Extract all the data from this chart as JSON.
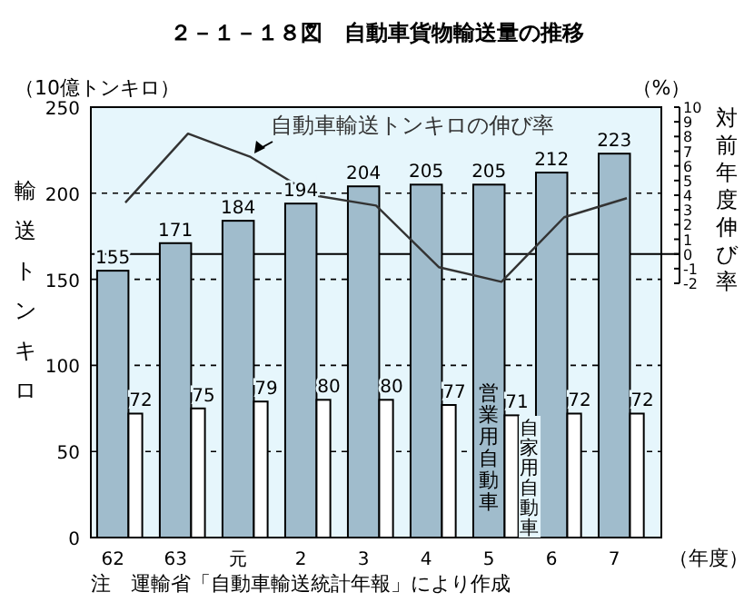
{
  "chart_data": {
    "type": "bar",
    "title": "２－１－１８図　自動車貨物輸送量の推移",
    "ylabel": "輸送トンキロ",
    "y2label": "対前年度伸び率",
    "xlabel": "（年度）",
    "annotations": [
      "（10億トンキロ）",
      "（%）",
      "注　運輸省「自動車輸送統計年報」により作成"
    ],
    "categories": [
      "62",
      "63",
      "元",
      "2",
      "3",
      "4",
      "5",
      "6",
      "7"
    ],
    "series": [
      {
        "name": "営業用自動車",
        "color": "#a0bccc",
        "values": [
          155,
          171,
          184,
          194,
          204,
          205,
          205,
          212,
          223
        ],
        "value_labels": [
          "155",
          "171",
          "184",
          "194",
          "204",
          "205",
          "205",
          "212",
          "223"
        ]
      },
      {
        "name": "自家用自動車",
        "color": "#ffffff",
        "values": [
          72,
          75,
          79,
          80,
          80,
          77,
          71,
          72,
          72
        ],
        "value_labels": [
          "72",
          "75",
          "79",
          "80",
          "80",
          "77",
          "71",
          "72",
          "72"
        ]
      },
      {
        "name": "自動車輸送トンキロの伸び率",
        "type": "line",
        "axis": "y2",
        "color": "#333333",
        "values": [
          3.5,
          8.2,
          6.6,
          4.0,
          3.3,
          -0.9,
          -1.9,
          2.5,
          3.8
        ]
      }
    ],
    "ylim": [
      0,
      250
    ],
    "yticks": [
      0,
      50,
      100,
      150,
      200,
      250
    ],
    "y2lim": [
      -2,
      10
    ],
    "y2ticks": [
      -2,
      -1,
      0,
      1,
      2,
      3,
      4,
      5,
      6,
      7,
      8,
      9,
      10
    ],
    "grid": "y",
    "ref_lines": [
      {
        "axis": "y2",
        "value": 0,
        "line_style": "solid"
      }
    ]
  }
}
